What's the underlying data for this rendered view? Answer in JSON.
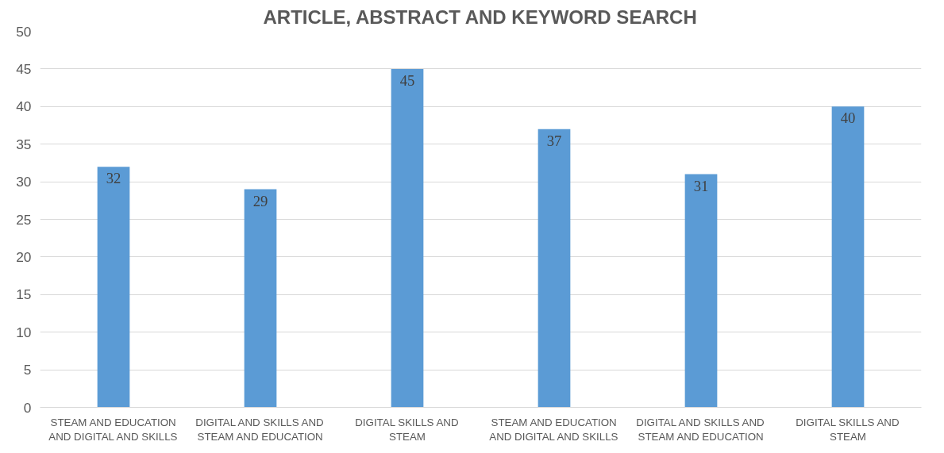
{
  "chart_data": {
    "type": "bar",
    "title": "ARTICLE, ABSTRACT AND KEYWORD SEARCH",
    "categories": [
      "STEAM AND EDUCATION AND DIGITAL AND SKILLS",
      "DIGITAL AND SKILLS AND STEAM AND EDUCATION",
      "DIGITAL SKILLS AND STEAM",
      "STEAM AND EDUCATION AND DIGITAL AND SKILLS",
      "DIGITAL AND SKILLS AND STEAM AND EDUCATION",
      "DIGITAL SKILLS AND STEAM"
    ],
    "values": [
      32,
      29,
      45,
      37,
      31,
      40
    ],
    "color": "#5b9bd5",
    "ylim": [
      0,
      50
    ],
    "yticks": [
      0,
      5,
      10,
      15,
      20,
      25,
      30,
      35,
      40,
      45,
      50
    ],
    "grid": "y",
    "data_labels": true
  }
}
